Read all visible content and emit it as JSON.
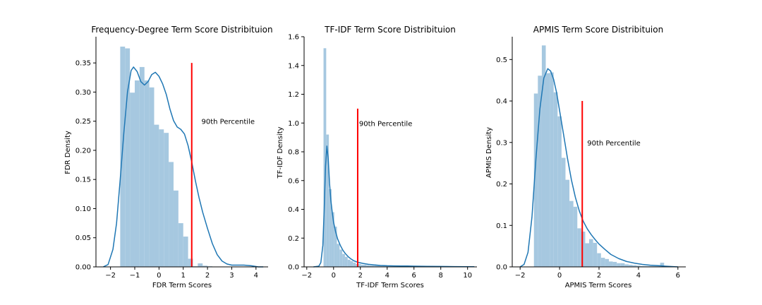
{
  "colors": {
    "hist": "#a6c8e0",
    "kde": "#1f77b4",
    "percentile": "#ff0000",
    "axis": "#000000"
  },
  "chart_data": [
    {
      "type": "histogram",
      "title": "Frequency-Degree Term Score Distribituion",
      "xlabel": "FDR Term Scores",
      "ylabel": "FDR Density",
      "xlim": [
        -2.6,
        4.5
      ],
      "ylim": [
        0,
        0.395
      ],
      "xticks": [
        -2,
        -1,
        0,
        1,
        2,
        3,
        4
      ],
      "yticks": [
        0.0,
        0.05,
        0.1,
        0.15,
        0.2,
        0.25,
        0.3,
        0.35
      ],
      "ytick_decimals": 2,
      "bins": {
        "start": -1.6,
        "width": 0.2,
        "heights": [
          0.378,
          0.375,
          0.299,
          0.32,
          0.343,
          0.32,
          0.308,
          0.244,
          0.236,
          0.23,
          0.18,
          0.131,
          0.075,
          0.052,
          0.014,
          0.001,
          0.006,
          0.002,
          0.001
        ]
      },
      "kde": {
        "x": [
          -2.3,
          -2.1,
          -1.9,
          -1.75,
          -1.6,
          -1.45,
          -1.3,
          -1.15,
          -1.05,
          -0.9,
          -0.75,
          -0.6,
          -0.45,
          -0.3,
          -0.15,
          0.0,
          0.15,
          0.3,
          0.45,
          0.6,
          0.75,
          0.9,
          1.05,
          1.2,
          1.35,
          1.5,
          1.65,
          1.8,
          2.0,
          2.2,
          2.4,
          2.6,
          2.8,
          3.0,
          3.2,
          3.5,
          3.8,
          4.1,
          4.3
        ],
        "y": [
          0.0,
          0.004,
          0.03,
          0.075,
          0.15,
          0.23,
          0.3,
          0.337,
          0.343,
          0.335,
          0.318,
          0.312,
          0.318,
          0.33,
          0.334,
          0.327,
          0.314,
          0.296,
          0.271,
          0.251,
          0.24,
          0.236,
          0.228,
          0.208,
          0.18,
          0.148,
          0.119,
          0.094,
          0.066,
          0.04,
          0.021,
          0.01,
          0.005,
          0.003,
          0.003,
          0.003,
          0.002,
          0.0,
          0.0
        ]
      },
      "percentile": {
        "x": 1.35,
        "top": 0.35,
        "label": "90th Percentile",
        "label_x": 1.75,
        "label_y": 0.25
      }
    },
    {
      "type": "histogram",
      "title": "TF-IDF Term Score Distribituion",
      "xlabel": "TF-IDF Term Scores",
      "ylabel": "TF-IDF Density",
      "xlim": [
        -2.2,
        10.7
      ],
      "ylim": [
        0,
        1.6
      ],
      "xticks": [
        -2,
        0,
        2,
        4,
        6,
        8,
        10
      ],
      "yticks": [
        0.0,
        0.2,
        0.4,
        0.6,
        0.8,
        1.0,
        1.2,
        1.4,
        1.6
      ],
      "ytick_decimals": 1,
      "bins": {
        "start": -0.75,
        "width": 0.2,
        "heights": [
          1.52,
          0.92,
          0.54,
          0.38,
          0.28,
          0.16,
          0.12,
          0.09,
          0.07,
          0.05,
          0.04,
          0.03,
          0.02,
          0.02,
          0.015,
          0.015,
          0.012,
          0.01,
          0.01,
          0.015,
          0.01,
          0.008,
          0.008,
          0.006,
          0.006,
          0.01,
          0.006,
          0.006,
          0.008,
          0.006,
          0.005,
          0.004,
          0.004,
          0.004,
          0.003,
          0.003,
          0.003,
          0.002,
          0.002,
          0.002,
          0.002,
          0.002,
          0.002,
          0.002,
          0.002,
          0.002,
          0.002,
          0.002,
          0.002,
          0.002,
          0.002,
          0.001,
          0.001,
          0.001,
          0.001,
          0.001,
          0.001
        ]
      },
      "kde": {
        "x": [
          -1.5,
          -1.1,
          -0.95,
          -0.8,
          -0.7,
          -0.6,
          -0.5,
          -0.4,
          -0.3,
          -0.2,
          -0.1,
          0.0,
          0.15,
          0.3,
          0.5,
          0.7,
          0.9,
          1.1,
          1.3,
          1.5,
          1.8,
          2.2,
          2.6,
          3.0,
          3.5,
          4.0,
          4.5,
          5.0,
          5.5,
          6.0,
          7.0,
          8.0,
          9.0,
          10.0,
          10.5
        ],
        "y": [
          0.0,
          0.005,
          0.03,
          0.15,
          0.4,
          0.7,
          0.84,
          0.75,
          0.58,
          0.46,
          0.38,
          0.31,
          0.245,
          0.195,
          0.15,
          0.115,
          0.09,
          0.07,
          0.055,
          0.043,
          0.032,
          0.024,
          0.018,
          0.014,
          0.01,
          0.008,
          0.007,
          0.006,
          0.006,
          0.005,
          0.004,
          0.003,
          0.002,
          0.001,
          0.001
        ]
      },
      "percentile": {
        "x": 1.8,
        "top": 1.1,
        "label": "90th Percentile",
        "label_x": 1.9,
        "label_y": 1.0
      }
    },
    {
      "type": "histogram",
      "title": "APMIS Term Score Distribituion",
      "xlabel": "APMIS Term Scores",
      "ylabel": "APMIS Density",
      "xlim": [
        -2.4,
        6.4
      ],
      "ylim": [
        0,
        0.555
      ],
      "xticks": [
        -2,
        0,
        2,
        4,
        6
      ],
      "yticks": [
        0.0,
        0.1,
        0.2,
        0.3,
        0.4,
        0.5
      ],
      "ytick_decimals": 1,
      "bins": {
        "start": -1.3,
        "width": 0.2,
        "heights": [
          0.418,
          0.461,
          0.534,
          0.467,
          0.469,
          0.421,
          0.363,
          0.263,
          0.21,
          0.159,
          0.145,
          0.093,
          0.085,
          0.057,
          0.067,
          0.058,
          0.033,
          0.022,
          0.019,
          0.013,
          0.012,
          0.009,
          0.009,
          0.006,
          0.005,
          0.004,
          0.003,
          0.002,
          0.002,
          0.002,
          0.002,
          0.002,
          0.01,
          0.002,
          0.001,
          0.001
        ]
      },
      "kde": {
        "x": [
          -2.0,
          -1.8,
          -1.6,
          -1.4,
          -1.2,
          -1.0,
          -0.8,
          -0.6,
          -0.45,
          -0.3,
          -0.15,
          0.0,
          0.2,
          0.4,
          0.6,
          0.8,
          1.0,
          1.2,
          1.4,
          1.6,
          1.8,
          2.0,
          2.3,
          2.6,
          3.0,
          3.4,
          3.8,
          4.2,
          4.6,
          5.0,
          5.3,
          5.6,
          6.0
        ],
        "y": [
          0.0,
          0.006,
          0.035,
          0.12,
          0.26,
          0.38,
          0.455,
          0.478,
          0.472,
          0.452,
          0.42,
          0.377,
          0.32,
          0.262,
          0.21,
          0.168,
          0.135,
          0.11,
          0.092,
          0.078,
          0.066,
          0.055,
          0.042,
          0.03,
          0.02,
          0.013,
          0.009,
          0.006,
          0.004,
          0.003,
          0.002,
          0.001,
          0.0
        ]
      },
      "percentile": {
        "x": 1.15,
        "top": 0.4,
        "label": "90th Percentile",
        "label_x": 1.4,
        "label_y": 0.3
      }
    }
  ]
}
